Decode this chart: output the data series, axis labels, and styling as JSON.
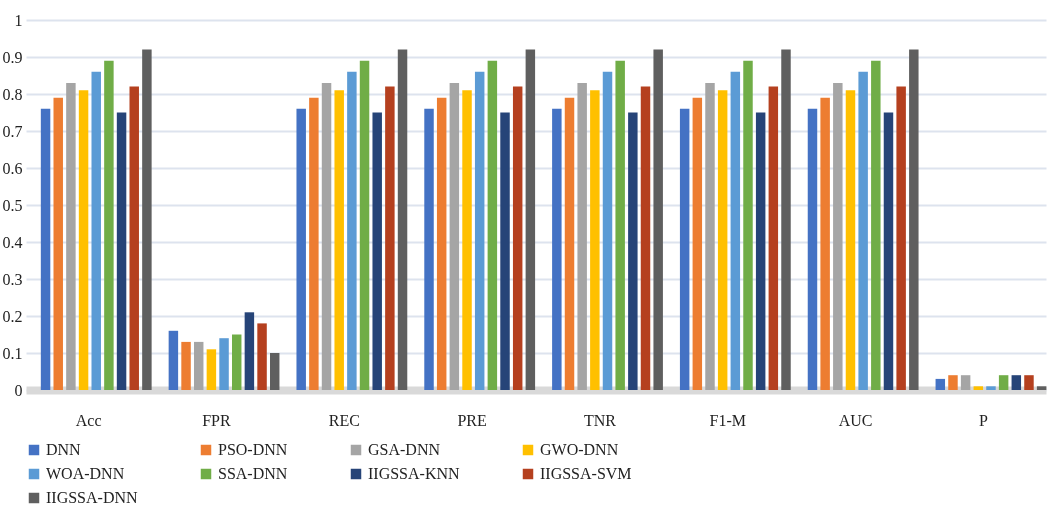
{
  "chart_data": {
    "type": "bar",
    "categories": [
      "Acc",
      "FPR",
      "REC",
      "PRE",
      "TNR",
      "F1-M",
      "AUC",
      "P"
    ],
    "series": [
      {
        "name": "DNN",
        "color": "#4472c4",
        "values": [
          0.76,
          0.16,
          0.76,
          0.76,
          0.76,
          0.76,
          0.76,
          0.03
        ]
      },
      {
        "name": "PSO-DNN",
        "color": "#ed7d31",
        "values": [
          0.79,
          0.13,
          0.79,
          0.79,
          0.79,
          0.79,
          0.79,
          0.04
        ]
      },
      {
        "name": "GSA-DNN",
        "color": "#a5a5a5",
        "values": [
          0.83,
          0.13,
          0.83,
          0.83,
          0.83,
          0.83,
          0.83,
          0.04
        ]
      },
      {
        "name": "GWO-DNN",
        "color": "#ffc000",
        "values": [
          0.81,
          0.11,
          0.81,
          0.81,
          0.81,
          0.81,
          0.81,
          0.01
        ]
      },
      {
        "name": "WOA-DNN",
        "color": "#5b9bd5",
        "values": [
          0.86,
          0.14,
          0.86,
          0.86,
          0.86,
          0.86,
          0.86,
          0.01
        ]
      },
      {
        "name": "SSA-DNN",
        "color": "#70ad47",
        "values": [
          0.89,
          0.15,
          0.89,
          0.89,
          0.89,
          0.89,
          0.89,
          0.04
        ]
      },
      {
        "name": "IIGSSA-KNN",
        "color": "#264478",
        "values": [
          0.75,
          0.21,
          0.75,
          0.75,
          0.75,
          0.75,
          0.75,
          0.04
        ]
      },
      {
        "name": "IIGSSA-SVM",
        "color": "#b5401f",
        "values": [
          0.82,
          0.18,
          0.82,
          0.82,
          0.82,
          0.82,
          0.82,
          0.04
        ]
      },
      {
        "name": "IIGSSA-DNN",
        "color": "#5f5f5f",
        "values": [
          0.92,
          0.1,
          0.92,
          0.92,
          0.92,
          0.92,
          0.92,
          0.01
        ]
      }
    ],
    "ylim": [
      0,
      1
    ],
    "yticks": [
      0,
      0.1,
      0.2,
      0.3,
      0.4,
      0.5,
      0.6,
      0.7,
      0.8,
      0.9,
      1
    ],
    "grid": "y",
    "legend": "bottom"
  }
}
